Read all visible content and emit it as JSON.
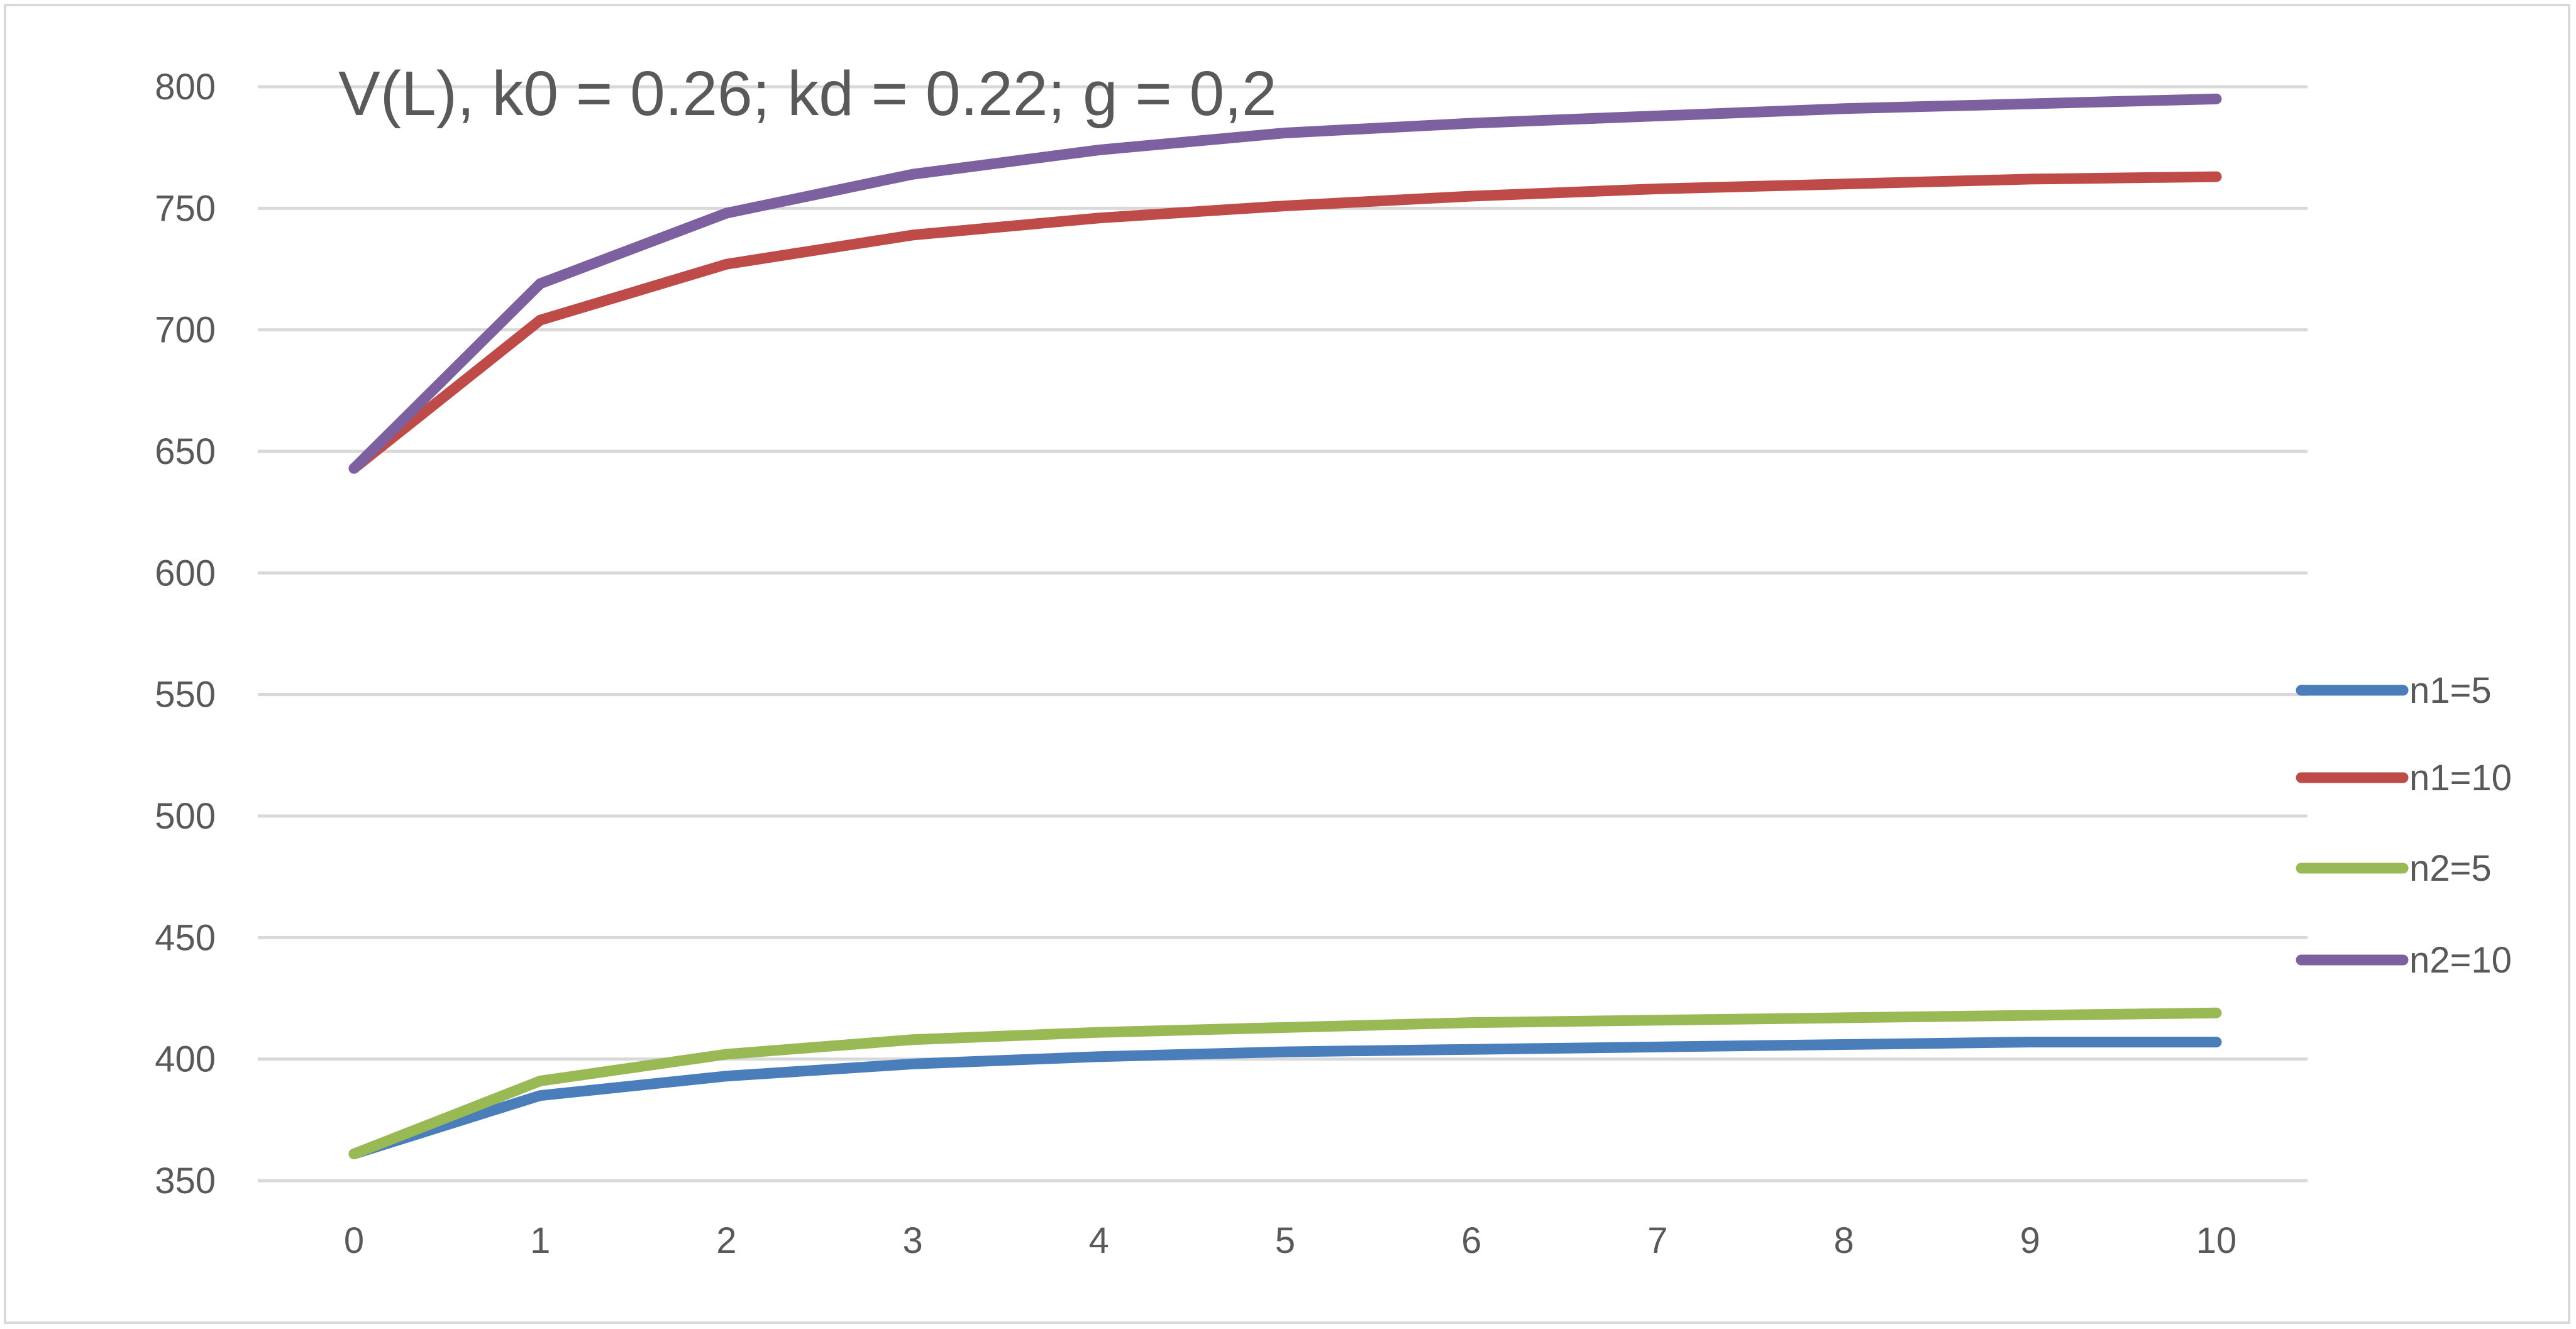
{
  "chart_data": {
    "type": "line",
    "title": "V(L), k0 = 0.26; kd = 0.22; g = 0,2",
    "x": [
      0,
      1,
      2,
      3,
      4,
      5,
      6,
      7,
      8,
      9,
      10
    ],
    "x_tick_labels": [
      "0",
      "1",
      "2",
      "3",
      "4",
      "5",
      "6",
      "7",
      "8",
      "9",
      "10"
    ],
    "y_tick_labels": [
      "350",
      "400",
      "450",
      "500",
      "550",
      "600",
      "650",
      "700",
      "750",
      "800"
    ],
    "ylim": [
      350,
      800
    ],
    "grid": true,
    "legend_position": "right",
    "series": [
      {
        "name": "n1=5",
        "color": "#4a7ebb",
        "values": [
          361,
          385,
          393,
          398,
          401,
          403,
          404,
          405,
          406,
          407,
          407
        ]
      },
      {
        "name": "n1=10",
        "color": "#be4b48",
        "values": [
          643,
          704,
          727,
          739,
          746,
          751,
          755,
          758,
          760,
          762,
          763
        ]
      },
      {
        "name": "n2=5",
        "color": "#98b954",
        "values": [
          361,
          391,
          402,
          408,
          411,
          413,
          415,
          416,
          417,
          418,
          419
        ]
      },
      {
        "name": "n2=10",
        "color": "#7d60a0",
        "values": [
          643,
          719,
          748,
          764,
          774,
          781,
          785,
          788,
          791,
          793,
          795
        ]
      }
    ]
  }
}
